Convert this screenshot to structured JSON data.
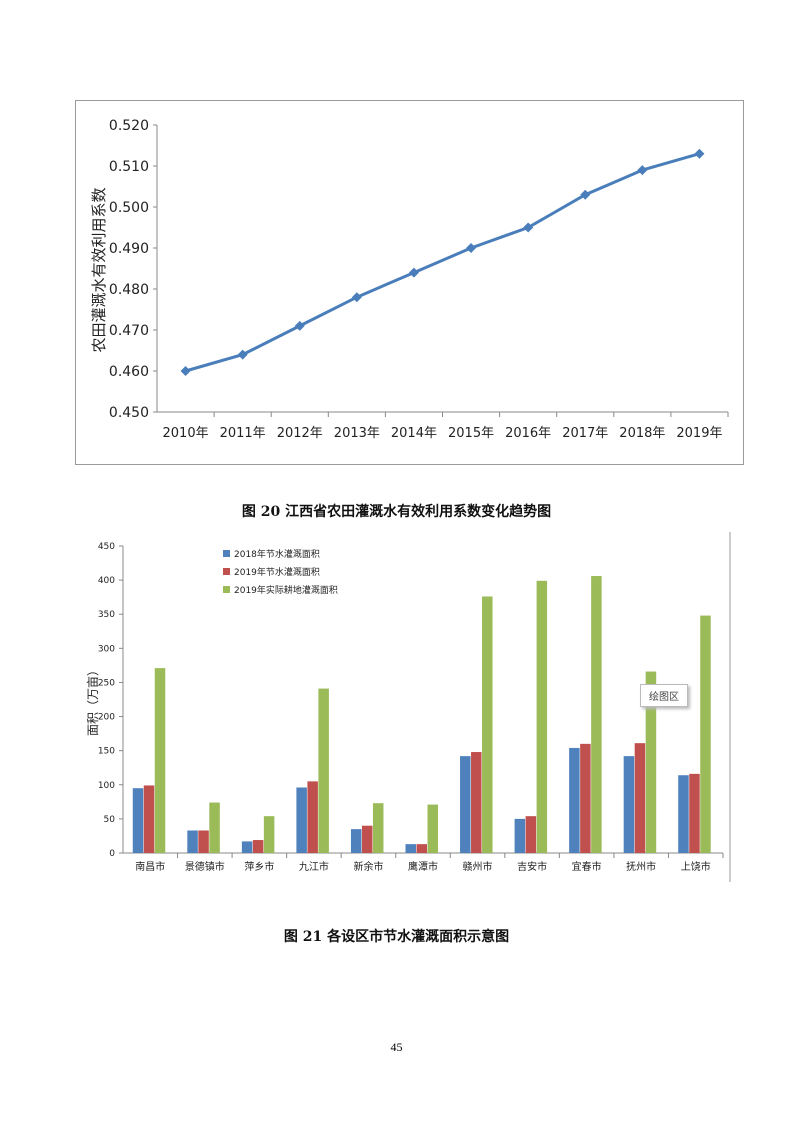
{
  "chart_data": [
    {
      "type": "line",
      "title": "",
      "ylabel": "农田灌溉水有效利用系数",
      "xlabel": "",
      "categories": [
        "2010年",
        "2011年",
        "2012年",
        "2013年",
        "2014年",
        "2015年",
        "2016年",
        "2017年",
        "2018年",
        "2019年"
      ],
      "values": [
        0.46,
        0.464,
        0.471,
        0.478,
        0.484,
        0.49,
        0.495,
        0.503,
        0.509,
        0.513
      ],
      "ylim": [
        0.45,
        0.52
      ],
      "yticks": [
        "0.450",
        "0.460",
        "0.470",
        "0.480",
        "0.490",
        "0.500",
        "0.510",
        "0.520"
      ],
      "color": "#4a7ebb",
      "marker": "diamond"
    },
    {
      "type": "bar",
      "ylabel": "面积（万亩）",
      "xlabel": "",
      "categories": [
        "南昌市",
        "景德镇市",
        "萍乡市",
        "九江市",
        "新余市",
        "鹰潭市",
        "赣州市",
        "吉安市",
        "宜春市",
        "抚州市",
        "上饶市"
      ],
      "series": [
        {
          "name": "2018年节水灌溉面积",
          "color": "#4f81bd",
          "values": [
            95,
            33,
            17,
            96,
            35,
            13,
            142,
            50,
            154,
            142,
            114
          ]
        },
        {
          "name": "2019年节水灌溉面积",
          "color": "#c0504d",
          "values": [
            99,
            33,
            19,
            105,
            40,
            13,
            148,
            54,
            160,
            161,
            116
          ]
        },
        {
          "name": "2019年实际耕地灌溉面积",
          "color": "#9bbb59",
          "values": [
            271,
            74,
            54,
            241,
            73,
            71,
            376,
            399,
            406,
            266,
            348
          ]
        }
      ],
      "ylim": [
        0,
        450
      ],
      "yticks": [
        "0",
        "50",
        "100",
        "150",
        "200",
        "250",
        "300",
        "350",
        "400",
        "450"
      ],
      "legend": "top-left",
      "tooltip": "绘图区"
    }
  ],
  "captions": {
    "fig20": "图 20    江西省农田灌溉水有效利用系数变化趋势图",
    "fig21": "图 21 各设区市节水灌溉面积示意图"
  },
  "page_number": "45"
}
